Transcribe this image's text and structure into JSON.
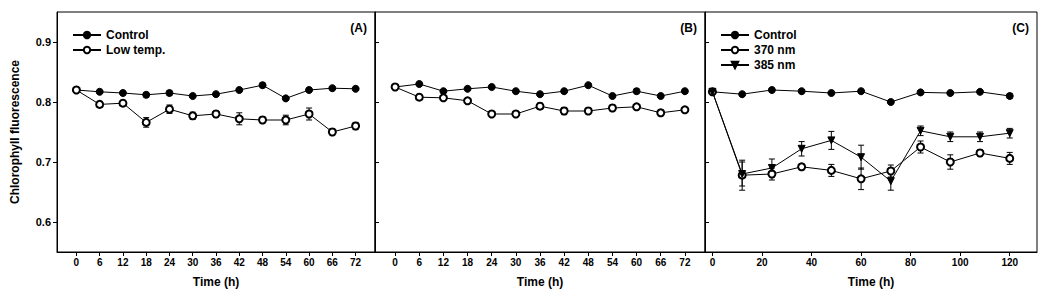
{
  "chart_data": [
    {
      "type": "line",
      "annotation": "(A)",
      "xlabel": "Time (h)",
      "ylabel": "Chlorophyll fluorescence",
      "x": [
        0,
        6,
        12,
        18,
        24,
        30,
        36,
        42,
        48,
        54,
        60,
        66,
        72
      ],
      "xlim": [
        -5,
        77
      ],
      "xticks": [
        0,
        6,
        12,
        18,
        24,
        30,
        36,
        42,
        48,
        54,
        60,
        66,
        72
      ],
      "ylim": [
        0.55,
        0.95
      ],
      "yticks": [
        0.6,
        0.7,
        0.8,
        0.9
      ],
      "grid": false,
      "legend": "upper left",
      "series": [
        {
          "name": "Control",
          "color": "#000000",
          "marker": "circle",
          "values": [
            0.82,
            0.817,
            0.815,
            0.812,
            0.815,
            0.81,
            0.813,
            0.82,
            0.828,
            0.806,
            0.82,
            0.823,
            0.822
          ],
          "errors": [
            0.003,
            0.003,
            0.003,
            0.004,
            0.004,
            0.003,
            0.003,
            0.003,
            0.004,
            0.003,
            0.003,
            0.003,
            0.003
          ]
        },
        {
          "name": "Low temp.",
          "color": "#000000",
          "marker": "open_circle",
          "values": [
            0.82,
            0.796,
            0.798,
            0.766,
            0.788,
            0.777,
            0.78,
            0.772,
            0.77,
            0.77,
            0.78,
            0.75,
            0.76
          ],
          "errors": [
            0.003,
            0.005,
            0.004,
            0.008,
            0.007,
            0.006,
            0.005,
            0.01,
            0.005,
            0.008,
            0.01,
            0.005,
            0.006
          ]
        }
      ]
    },
    {
      "type": "line",
      "annotation": "(B)",
      "xlabel": "Time (h)",
      "x": [
        0,
        6,
        12,
        18,
        24,
        30,
        36,
        42,
        48,
        54,
        60,
        66,
        72
      ],
      "xlim": [
        -5,
        77
      ],
      "xticks": [
        0,
        6,
        12,
        18,
        24,
        30,
        36,
        42,
        48,
        54,
        60,
        66,
        72
      ],
      "ylim": [
        0.55,
        0.95
      ],
      "yticks": [
        0.6,
        0.7,
        0.8,
        0.9
      ],
      "grid": false,
      "tick_labels": "x",
      "series": [
        {
          "color": "#000000",
          "marker": "circle",
          "values": [
            0.825,
            0.83,
            0.818,
            0.822,
            0.825,
            0.818,
            0.813,
            0.818,
            0.828,
            0.81,
            0.818,
            0.81,
            0.818
          ],
          "errors": [
            0.003,
            0.003,
            0.003,
            0.003,
            0.003,
            0.003,
            0.003,
            0.003,
            0.003,
            0.003,
            0.004,
            0.003,
            0.003
          ]
        },
        {
          "color": "#000000",
          "marker": "open_circle",
          "values": [
            0.825,
            0.808,
            0.807,
            0.802,
            0.78,
            0.78,
            0.793,
            0.785,
            0.785,
            0.79,
            0.792,
            0.782,
            0.787
          ],
          "errors": [
            0.003,
            0.003,
            0.003,
            0.003,
            0.003,
            0.004,
            0.005,
            0.006,
            0.005,
            0.005,
            0.004,
            0.005,
            0.004
          ]
        }
      ]
    },
    {
      "type": "line",
      "annotation": "(C)",
      "xlabel": "Time (h)",
      "x": [
        0,
        12,
        24,
        36,
        48,
        60,
        72,
        84,
        96,
        108,
        120
      ],
      "xlim": [
        -3,
        131
      ],
      "xticks": [
        0,
        20,
        40,
        60,
        80,
        100,
        120
      ],
      "ylim": [
        0.55,
        0.95
      ],
      "yticks": [
        0.6,
        0.7,
        0.8,
        0.9
      ],
      "grid": false,
      "tick_labels": "x",
      "legend": "upper left",
      "series": [
        {
          "name": "Control",
          "color": "#000000",
          "marker": "circle",
          "values": [
            0.817,
            0.813,
            0.82,
            0.818,
            0.815,
            0.818,
            0.8,
            0.816,
            0.815,
            0.817,
            0.81
          ],
          "errors": [
            0.003,
            0.003,
            0.003,
            0.003,
            0.003,
            0.003,
            0.003,
            0.003,
            0.003,
            0.003,
            0.004
          ]
        },
        {
          "name": "370 nm",
          "color": "#000000",
          "marker": "open_circle",
          "values": [
            0.817,
            0.678,
            0.68,
            0.692,
            0.686,
            0.672,
            0.685,
            0.725,
            0.7,
            0.715,
            0.706
          ],
          "errors": [
            0.003,
            0.025,
            0.01,
            0.005,
            0.01,
            0.018,
            0.01,
            0.01,
            0.012,
            0.005,
            0.01
          ]
        },
        {
          "name": "385 nm",
          "color": "#000000",
          "marker": "triangle_down",
          "values": [
            0.817,
            0.68,
            0.69,
            0.722,
            0.736,
            0.708,
            0.668,
            0.752,
            0.742,
            0.742,
            0.748
          ],
          "errors": [
            0.003,
            0.02,
            0.015,
            0.012,
            0.015,
            0.02,
            0.015,
            0.008,
            0.008,
            0.008,
            0.008
          ]
        }
      ]
    }
  ]
}
